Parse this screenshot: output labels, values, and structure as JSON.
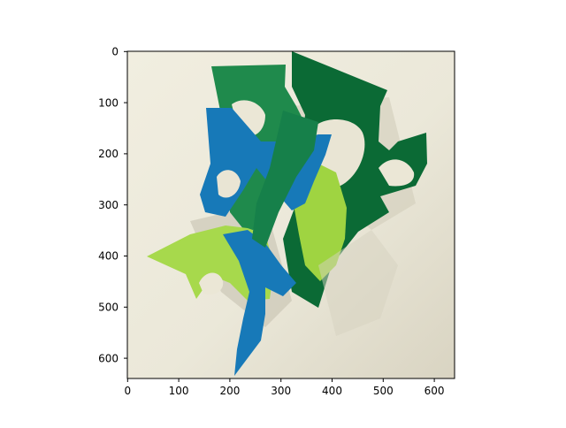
{
  "axes": {
    "x_ticks": [
      "0",
      "100",
      "200",
      "300",
      "400",
      "500",
      "600"
    ],
    "y_ticks": [
      "0",
      "100",
      "200",
      "300",
      "400",
      "500",
      "600"
    ]
  },
  "image": {
    "subject": "paper-cutout-collage",
    "colors": {
      "background": "#ece8d8",
      "dark_green": "#0b6a35",
      "medium_green": "#1f8a4c",
      "blue": "#1779b8",
      "light_green": "#a7d94c"
    }
  }
}
